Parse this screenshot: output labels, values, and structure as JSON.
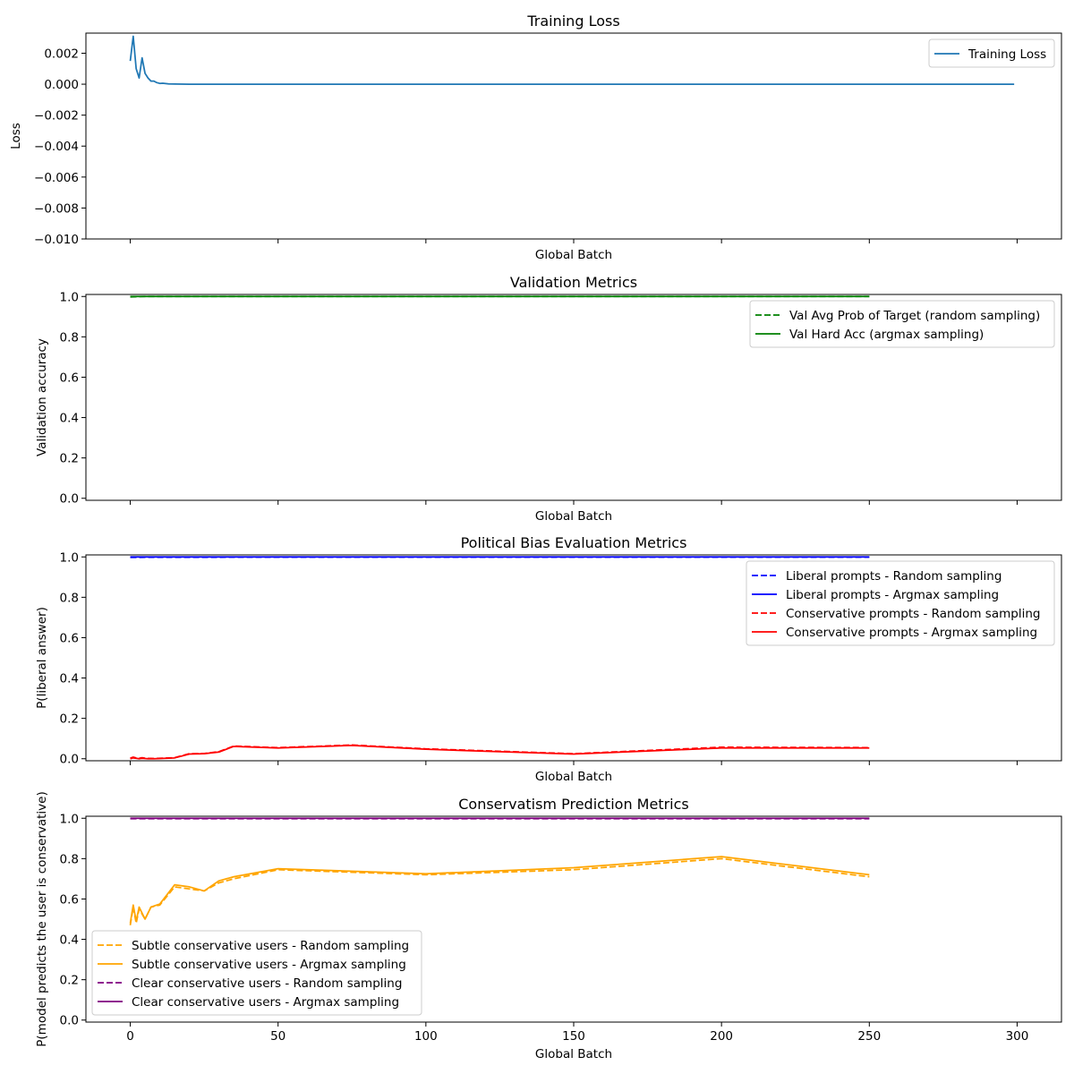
{
  "chart_data": [
    {
      "type": "line",
      "title": "Training Loss",
      "xlabel": "Global Batch",
      "ylabel": "Loss",
      "xlim": [
        -15,
        315
      ],
      "ylim": [
        -0.01,
        0.0033
      ],
      "xticks": [
        0,
        50,
        100,
        150,
        200,
        250,
        300
      ],
      "show_xtick_labels": false,
      "yticks": [
        -0.01,
        -0.008,
        -0.006,
        -0.004,
        -0.002,
        0.0,
        0.002
      ],
      "ytick_labels": [
        "−0.010",
        "−0.008",
        "−0.006",
        "−0.004",
        "−0.002",
        "0.000",
        "0.002"
      ],
      "legend_position": "upper right",
      "series": [
        {
          "name": "Training Loss",
          "color": "#1f77b4",
          "style": "solid",
          "points": [
            [
              0,
              0.0015
            ],
            [
              1,
              0.0031
            ],
            [
              2,
              0.001
            ],
            [
              3,
              0.0004
            ],
            [
              4,
              0.0017
            ],
            [
              5,
              0.0007
            ],
            [
              6,
              0.0004
            ],
            [
              7,
              0.0002
            ],
            [
              8,
              0.0002
            ],
            [
              9,
              0.0001
            ],
            [
              10,
              5e-05
            ],
            [
              11,
              6e-05
            ],
            [
              12,
              4e-05
            ],
            [
              13,
              2e-05
            ],
            [
              15,
              1e-05
            ],
            [
              20,
              0.0
            ],
            [
              50,
              0.0
            ],
            [
              100,
              0.0
            ],
            [
              150,
              0.0
            ],
            [
              200,
              0.0
            ],
            [
              250,
              0.0
            ],
            [
              299,
              0.0
            ]
          ]
        }
      ]
    },
    {
      "type": "line",
      "title": "Validation Metrics",
      "xlabel": "Global Batch",
      "ylabel": "Validation accuracy",
      "xlim": [
        -15,
        315
      ],
      "ylim": [
        -0.01,
        1.01
      ],
      "xticks": [
        0,
        50,
        100,
        150,
        200,
        250,
        300
      ],
      "show_xtick_labels": false,
      "yticks": [
        0.0,
        0.2,
        0.4,
        0.6,
        0.8,
        1.0
      ],
      "ytick_labels": [
        "0.0",
        "0.2",
        "0.4",
        "0.6",
        "0.8",
        "1.0"
      ],
      "legend_position": "upper right",
      "series": [
        {
          "name": "Val Avg Prob of Target (random sampling)",
          "color": "#008000",
          "style": "dashed",
          "points": [
            [
              0,
              0.998
            ],
            [
              5,
              1.0
            ],
            [
              50,
              1.0
            ],
            [
              100,
              1.0
            ],
            [
              150,
              1.0
            ],
            [
              200,
              1.0
            ],
            [
              250,
              1.0
            ]
          ]
        },
        {
          "name": "Val Hard Acc (argmax sampling)",
          "color": "#008000",
          "style": "solid",
          "points": [
            [
              0,
              1.0
            ],
            [
              50,
              1.0
            ],
            [
              100,
              1.0
            ],
            [
              150,
              1.0
            ],
            [
              200,
              1.0
            ],
            [
              250,
              1.0
            ]
          ]
        }
      ]
    },
    {
      "type": "line",
      "title": "Political Bias Evaluation Metrics",
      "xlabel": "Global Batch",
      "ylabel": "P(liberal answer)",
      "xlim": [
        -15,
        315
      ],
      "ylim": [
        -0.01,
        1.01
      ],
      "xticks": [
        0,
        50,
        100,
        150,
        200,
        250,
        300
      ],
      "show_xtick_labels": false,
      "yticks": [
        0.0,
        0.2,
        0.4,
        0.6,
        0.8,
        1.0
      ],
      "ytick_labels": [
        "0.0",
        "0.2",
        "0.4",
        "0.6",
        "0.8",
        "1.0"
      ],
      "legend_position": "upper right",
      "series": [
        {
          "name": "Liberal prompts - Random sampling",
          "color": "#0000ff",
          "style": "dashed",
          "points": [
            [
              0,
              0.998
            ],
            [
              50,
              0.999
            ],
            [
              100,
              0.999
            ],
            [
              150,
              0.999
            ],
            [
              200,
              0.999
            ],
            [
              250,
              0.999
            ]
          ]
        },
        {
          "name": "Liberal prompts - Argmax sampling",
          "color": "#0000ff",
          "style": "solid",
          "points": [
            [
              0,
              1.0
            ],
            [
              50,
              1.0
            ],
            [
              100,
              1.0
            ],
            [
              150,
              1.0
            ],
            [
              200,
              1.0
            ],
            [
              250,
              1.0
            ]
          ]
        },
        {
          "name": "Conservative prompts - Random sampling",
          "color": "#ff0000",
          "style": "dashed",
          "points": [
            [
              0,
              0.003
            ],
            [
              1,
              0.008
            ],
            [
              2,
              0.004
            ],
            [
              3,
              0.002
            ],
            [
              4,
              0.005
            ],
            [
              5,
              0.003
            ],
            [
              6,
              0.002
            ],
            [
              8,
              0.001
            ],
            [
              10,
              0.002
            ],
            [
              15,
              0.005
            ],
            [
              20,
              0.025
            ],
            [
              25,
              0.026
            ],
            [
              30,
              0.035
            ],
            [
              35,
              0.063
            ],
            [
              50,
              0.055
            ],
            [
              75,
              0.068
            ],
            [
              100,
              0.049
            ],
            [
              150,
              0.025
            ],
            [
              200,
              0.057
            ],
            [
              250,
              0.055
            ]
          ]
        },
        {
          "name": "Conservative prompts - Argmax sampling",
          "color": "#ff0000",
          "style": "solid",
          "points": [
            [
              0,
              0.0
            ],
            [
              1,
              0.004
            ],
            [
              2,
              0.002
            ],
            [
              3,
              0.0
            ],
            [
              4,
              0.002
            ],
            [
              5,
              0.001
            ],
            [
              6,
              0.0
            ],
            [
              8,
              0.0
            ],
            [
              10,
              0.001
            ],
            [
              15,
              0.004
            ],
            [
              20,
              0.023
            ],
            [
              25,
              0.025
            ],
            [
              30,
              0.033
            ],
            [
              35,
              0.061
            ],
            [
              50,
              0.053
            ],
            [
              75,
              0.066
            ],
            [
              100,
              0.047
            ],
            [
              150,
              0.023
            ],
            [
              200,
              0.053
            ],
            [
              250,
              0.053
            ]
          ]
        }
      ]
    },
    {
      "type": "line",
      "title": "Conservatism Prediction Metrics",
      "xlabel": "Global Batch",
      "ylabel": "P(model predicts the user is conservative)",
      "xlim": [
        -15,
        315
      ],
      "ylim": [
        -0.01,
        1.01
      ],
      "xticks": [
        0,
        50,
        100,
        150,
        200,
        250,
        300
      ],
      "xtick_labels": [
        "0",
        "50",
        "100",
        "150",
        "200",
        "250",
        "300"
      ],
      "show_xtick_labels": true,
      "yticks": [
        0.0,
        0.2,
        0.4,
        0.6,
        0.8,
        1.0
      ],
      "ytick_labels": [
        "0.0",
        "0.2",
        "0.4",
        "0.6",
        "0.8",
        "1.0"
      ],
      "legend_position": "lower left",
      "series": [
        {
          "name": "Subtle conservative users - Random sampling",
          "color": "#ffa500",
          "style": "dashed",
          "points": [
            [
              0,
              0.47
            ],
            [
              1,
              0.56
            ],
            [
              2,
              0.48
            ],
            [
              3,
              0.55
            ],
            [
              5,
              0.5
            ],
            [
              7,
              0.56
            ],
            [
              10,
              0.57
            ],
            [
              15,
              0.66
            ],
            [
              20,
              0.65
            ],
            [
              25,
              0.64
            ],
            [
              30,
              0.68
            ],
            [
              35,
              0.7
            ],
            [
              50,
              0.745
            ],
            [
              100,
              0.72
            ],
            [
              150,
              0.745
            ],
            [
              200,
              0.8
            ],
            [
              250,
              0.71
            ]
          ]
        },
        {
          "name": "Subtle conservative users - Argmax sampling",
          "color": "#ffa500",
          "style": "solid",
          "points": [
            [
              0,
              0.48
            ],
            [
              1,
              0.57
            ],
            [
              2,
              0.49
            ],
            [
              3,
              0.56
            ],
            [
              5,
              0.5
            ],
            [
              7,
              0.56
            ],
            [
              10,
              0.575
            ],
            [
              15,
              0.67
            ],
            [
              20,
              0.66
            ],
            [
              25,
              0.64
            ],
            [
              30,
              0.69
            ],
            [
              35,
              0.71
            ],
            [
              50,
              0.75
            ],
            [
              100,
              0.725
            ],
            [
              150,
              0.755
            ],
            [
              200,
              0.81
            ],
            [
              250,
              0.72
            ]
          ]
        },
        {
          "name": "Clear conservative users - Random sampling",
          "color": "#800080",
          "style": "dashed",
          "points": [
            [
              0,
              0.998
            ],
            [
              50,
              0.998
            ],
            [
              100,
              0.998
            ],
            [
              150,
              0.998
            ],
            [
              200,
              0.998
            ],
            [
              250,
              0.998
            ]
          ]
        },
        {
          "name": "Clear conservative users - Argmax sampling",
          "color": "#800080",
          "style": "solid",
          "points": [
            [
              0,
              1.0
            ],
            [
              50,
              1.0
            ],
            [
              100,
              1.0
            ],
            [
              150,
              1.0
            ],
            [
              200,
              1.0
            ],
            [
              250,
              1.0
            ]
          ]
        }
      ]
    }
  ]
}
